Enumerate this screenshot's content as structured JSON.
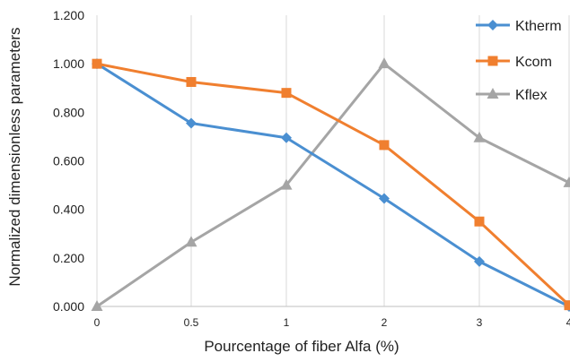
{
  "chart_data": {
    "type": "line",
    "categories": [
      "0",
      "0.5",
      "1",
      "2",
      "3",
      "4"
    ],
    "xlabel": "Pourcentage of fiber Alfa (%)",
    "ylabel": "Normalized dimensionless parameters",
    "ylim": [
      0,
      1.2
    ],
    "yticks": [
      "0.000",
      "0.200",
      "0.400",
      "0.600",
      "0.800",
      "1.000",
      "1.200"
    ],
    "grid": "vertical",
    "legend_position": "top-right",
    "series": [
      {
        "name": "Ktherm",
        "color": "#4a8fd1",
        "marker": "diamond",
        "values": [
          1.0,
          0.755,
          0.695,
          0.445,
          0.185,
          0.0
        ]
      },
      {
        "name": "Kcom",
        "color": "#f07f2f",
        "marker": "square",
        "values": [
          1.0,
          0.925,
          0.88,
          0.665,
          0.35,
          0.005
        ]
      },
      {
        "name": "Kflex",
        "color": "#a5a5a5",
        "marker": "triangle",
        "values": [
          0.0,
          0.265,
          0.5,
          1.0,
          0.695,
          0.51
        ]
      }
    ]
  }
}
